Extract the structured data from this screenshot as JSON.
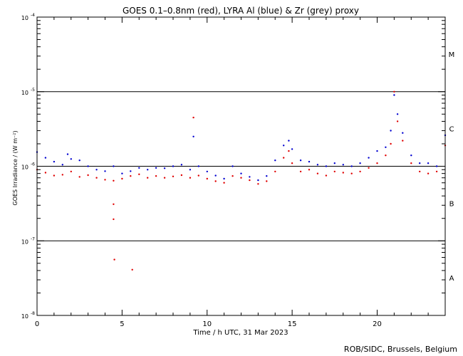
{
  "chart_data": {
    "type": "scatter",
    "title": "GOES 0.1–0.8nm (red), LYRA Al (blue) & Zr (grey) proxy",
    "xlabel": "Time / h UTC, 31 Mar 2023",
    "ylabel": "GOES Irradiance / (W m⁻²)",
    "xlim": [
      0,
      24
    ],
    "ylim": [
      1e-08,
      0.0001
    ],
    "yscale": "log",
    "x_ticks": [
      {
        "value": 0,
        "label": "0"
      },
      {
        "value": 5,
        "label": "5"
      },
      {
        "value": 10,
        "label": "10"
      },
      {
        "value": 15,
        "label": "15"
      },
      {
        "value": 20,
        "label": "20"
      }
    ],
    "y_ticks": [
      {
        "value": 1e-08,
        "base": "10",
        "exp": "-8"
      },
      {
        "value": 1e-07,
        "base": "10",
        "exp": "-7"
      },
      {
        "value": 1e-06,
        "base": "10",
        "exp": "-6"
      },
      {
        "value": 1e-05,
        "base": "10",
        "exp": "-5"
      },
      {
        "value": 0.0001,
        "base": "10",
        "exp": "-4"
      }
    ],
    "reference_lines": [
      1e-07,
      1e-06,
      1e-05
    ],
    "flare_classes": [
      {
        "label": "A",
        "value": 3.2e-08
      },
      {
        "label": "B",
        "value": 3.2e-07
      },
      {
        "label": "C",
        "value": 3.2e-06
      },
      {
        "label": "M",
        "value": 3.2e-05
      }
    ],
    "series": [
      {
        "color": "#e00000",
        "x": [
          0.0,
          0.5,
          1.0,
          1.5,
          2.0,
          2.5,
          3.0,
          3.5,
          4.0,
          4.5,
          5.0,
          5.5,
          6.0,
          6.5,
          7.0,
          7.5,
          8.0,
          8.5,
          9.0,
          9.2,
          9.5,
          10.0,
          10.5,
          11.0,
          11.5,
          12.0,
          12.5,
          13.0,
          13.5,
          14.0,
          14.5,
          14.8,
          15.0,
          15.5,
          16.0,
          16.5,
          17.0,
          17.5,
          18.0,
          18.5,
          19.0,
          19.5,
          20.0,
          20.5,
          20.8,
          21.0,
          21.2,
          21.5,
          22.0,
          22.5,
          23.0,
          23.5,
          24.0
        ],
        "y": [
          9e-07,
          8.2e-07,
          7.5e-07,
          7.7e-07,
          8.5e-07,
          7.2e-07,
          7.6e-07,
          7e-07,
          6.6e-07,
          6.4e-07,
          6.8e-07,
          7.4e-07,
          7.8e-07,
          7e-07,
          7.4e-07,
          7e-07,
          7.3e-07,
          7.6e-07,
          7e-07,
          4.5e-06,
          7.5e-07,
          6.8e-07,
          6.3e-07,
          6e-07,
          7.4e-07,
          7e-07,
          6.5e-07,
          5.8e-07,
          6.3e-07,
          8.5e-07,
          1.3e-06,
          1.6e-06,
          1.1e-06,
          8.5e-07,
          9e-07,
          8e-07,
          7.5e-07,
          8.5e-07,
          8.2e-07,
          8e-07,
          8.5e-07,
          9.5e-07,
          1.1e-06,
          1.4e-06,
          2e-06,
          1e-05,
          4e-06,
          2.2e-06,
          1.1e-06,
          8.5e-07,
          8e-07,
          8.5e-07,
          1.9e-06
        ]
      },
      {
        "color": "#e00000",
        "x": [
          4.5,
          4.5,
          4.55,
          5.6
        ],
        "y": [
          3.1e-07,
          1.95e-07,
          5.6e-08,
          4.1e-08
        ]
      },
      {
        "color": "#0000d0",
        "x": [
          0.0,
          0.5,
          1.0,
          1.5,
          1.8,
          2.0,
          2.5,
          3.0,
          3.5,
          4.0,
          4.5,
          5.0,
          5.5,
          6.0,
          6.5,
          7.0,
          7.5,
          8.0,
          8.5,
          9.0,
          9.2,
          9.5,
          10.0,
          10.5,
          11.0,
          11.5,
          12.0,
          12.5,
          13.0,
          13.5,
          14.0,
          14.5,
          14.8,
          15.0,
          15.5,
          16.0,
          16.5,
          17.0,
          17.5,
          18.0,
          18.5,
          19.0,
          19.5,
          20.0,
          20.5,
          20.8,
          21.0,
          21.2,
          21.5,
          22.0,
          22.5,
          23.0,
          23.5,
          24.0
        ],
        "y": [
          1.55e-06,
          1.3e-06,
          1.15e-06,
          1.05e-06,
          1.45e-06,
          1.25e-06,
          1.2e-06,
          1e-06,
          9e-07,
          8.6e-07,
          1e-06,
          8e-07,
          8.6e-07,
          9.5e-07,
          9e-07,
          9.5e-07,
          9.4e-07,
          1e-06,
          1.05e-06,
          9e-07,
          2.5e-06,
          1e-06,
          8.5e-07,
          7.5e-07,
          6.8e-07,
          1e-06,
          8e-07,
          7.2e-07,
          6.5e-07,
          7.4e-07,
          1.2e-06,
          1.9e-06,
          2.2e-06,
          1.7e-06,
          1.2e-06,
          1.15e-06,
          1.05e-06,
          1e-06,
          1.1e-06,
          1.05e-06,
          1e-06,
          1.1e-06,
          1.3e-06,
          1.6e-06,
          1.8e-06,
          3e-06,
          9e-06,
          5e-06,
          2.8e-06,
          1.4e-06,
          1.1e-06,
          1.1e-06,
          1e-06,
          2.6e-06
        ]
      }
    ]
  },
  "footer": {
    "credit": "ROB/SIDC, Brussels, Belgium"
  }
}
